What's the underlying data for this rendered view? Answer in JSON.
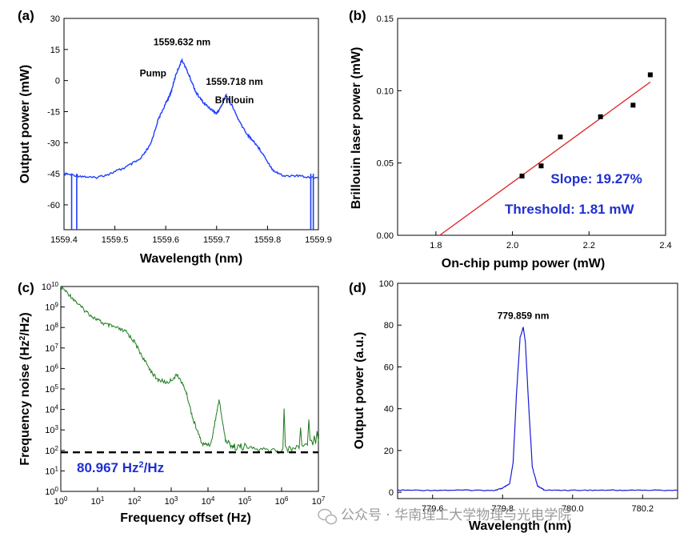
{
  "watermark": {
    "text": "公众号 · 华南理工大学物理与光电学院",
    "icon": "wechat-icon"
  },
  "chart_data": [
    {
      "panel": "(a)",
      "type": "line",
      "xlabel": "Wavelength (nm)",
      "ylabel": "Output power (mW)",
      "xlim": [
        1559.4,
        1559.9
      ],
      "ylim": [
        -72,
        30
      ],
      "xticks": [
        "1559.4",
        "1559.5",
        "1559.6",
        "1559.7",
        "1559.8",
        "1559.9"
      ],
      "xtick_values": [
        1559.4,
        1559.5,
        1559.6,
        1559.7,
        1559.8,
        1559.9
      ],
      "yticks": [
        "30",
        "15",
        "0",
        "-15",
        "-30",
        "-45",
        "-60"
      ],
      "ytick_values": [
        30,
        15,
        0,
        -15,
        -30,
        -45,
        -60
      ],
      "color": "#1f3fff",
      "annotations": [
        {
          "text": "1559.632 nm",
          "x": 1559.632,
          "y": 17
        },
        {
          "text": "Pump",
          "x": 1559.575,
          "y": 2
        },
        {
          "text": "1559.718 nm",
          "x": 1559.735,
          "y": -2
        },
        {
          "text": "Brillouin",
          "x": 1559.735,
          "y": -11
        }
      ],
      "series": [
        {
          "x": [
            1559.4,
            1559.43,
            1559.46,
            1559.49,
            1559.52,
            1559.55,
            1559.57,
            1559.585,
            1559.6,
            1559.61,
            1559.62,
            1559.632,
            1559.645,
            1559.66,
            1559.675,
            1559.69,
            1559.7,
            1559.71,
            1559.718,
            1559.73,
            1559.745,
            1559.76,
            1559.775,
            1559.79,
            1559.81,
            1559.83,
            1559.86,
            1559.9
          ],
          "y": [
            -45,
            -46,
            -47,
            -45,
            -42,
            -38,
            -31,
            -19,
            -11,
            -6,
            3,
            10,
            3,
            -6,
            -11,
            -14,
            -16,
            -12,
            -7,
            -12,
            -20,
            -26,
            -30,
            -35,
            -43,
            -46,
            -46,
            -47
          ]
        }
      ]
    },
    {
      "panel": "(b)",
      "type": "scatter",
      "xlabel": "On-chip pump power (mW)",
      "ylabel": "Brillouin laser power (mW)",
      "xlim": [
        1.7,
        2.4
      ],
      "ylim": [
        0,
        0.15
      ],
      "xticks": [
        "1.8",
        "2.0",
        "2.2",
        "2.4"
      ],
      "xtick_values": [
        1.8,
        2.0,
        2.2,
        2.4
      ],
      "yticks": [
        "0.00",
        "0.05",
        "0.10",
        "0.15"
      ],
      "ytick_values": [
        0,
        0.05,
        0.1,
        0.15
      ],
      "points": {
        "x": [
          2.025,
          2.075,
          2.125,
          2.23,
          2.315,
          2.36
        ],
        "y": [
          0.041,
          0.048,
          0.068,
          0.082,
          0.09,
          0.111
        ]
      },
      "fit": {
        "x": [
          1.81,
          2.36
        ],
        "y": [
          0.0,
          0.106
        ],
        "color": "#e02020"
      },
      "annotations": [
        {
          "text": "Slope: 19.27%",
          "x": 2.1,
          "y": 0.036
        },
        {
          "text": "Threshold: 1.81 mW",
          "x": 1.98,
          "y": 0.015
        }
      ]
    },
    {
      "panel": "(c)",
      "type": "line",
      "xscale": "log",
      "yscale": "log",
      "xlabel": "Frequency offset (Hz)",
      "ylabel": "Frequency noise (Hz²/Hz)",
      "xlim": [
        1,
        10000000
      ],
      "ylim": [
        1,
        10000000000
      ],
      "xtick_exponents": [
        "0",
        "1",
        "2",
        "3",
        "4",
        "5",
        "6",
        "7"
      ],
      "ytick_exponents": [
        "0",
        "1",
        "2",
        "3",
        "4",
        "5",
        "6",
        "7",
        "8",
        "9",
        "10"
      ],
      "tick_base": "10",
      "color": "#1e7a1e",
      "reference_line": {
        "y": 80.967,
        "style": "dashed"
      },
      "annotation": {
        "value": "80.967 Hz",
        "sup": "2",
        "unit": "/Hz"
      },
      "series": [
        {
          "x": [
            1,
            2,
            4,
            8,
            15,
            30,
            60,
            100,
            200,
            400,
            800,
            1500,
            2500,
            4000,
            7000,
            12000,
            20000,
            30000,
            50000,
            100000,
            300000,
            1000000,
            3000000,
            10000000
          ],
          "y": [
            10000000000,
            3000000000,
            800000000,
            300000000,
            150000000,
            100000000,
            60000000,
            20000000,
            2000000,
            300000,
            200000,
            500000,
            80000,
            3000,
            200,
            200,
            30000,
            300,
            150,
            150,
            100,
            100,
            150,
            300
          ]
        }
      ]
    },
    {
      "panel": "(d)",
      "type": "line",
      "xlabel": "Wavelength (nm)",
      "ylabel": "Output power (a.u.)",
      "xlim": [
        779.5,
        780.3
      ],
      "ylim": [
        -3,
        100
      ],
      "xticks": [
        "779.6",
        "779.8",
        "780.0",
        "780.2"
      ],
      "xtick_values": [
        779.6,
        779.8,
        780.0,
        780.2
      ],
      "yticks": [
        "0",
        "20",
        "40",
        "60",
        "80",
        "100"
      ],
      "ytick_values": [
        0,
        20,
        40,
        60,
        80,
        100
      ],
      "color": "#1a1ad8",
      "annotations": [
        {
          "text": "779.859 nm",
          "x": 779.859,
          "y": 83
        }
      ],
      "series": [
        {
          "x": [
            779.5,
            779.6,
            779.7,
            779.78,
            779.8,
            779.82,
            779.83,
            779.84,
            779.85,
            779.859,
            779.865,
            779.875,
            779.885,
            779.9,
            779.92,
            780.0,
            780.1,
            780.2,
            780.3
          ],
          "y": [
            1,
            1,
            1,
            1,
            2,
            4,
            14,
            48,
            74,
            79,
            72,
            40,
            12,
            3,
            1,
            1,
            1,
            1,
            1
          ]
        }
      ]
    }
  ]
}
